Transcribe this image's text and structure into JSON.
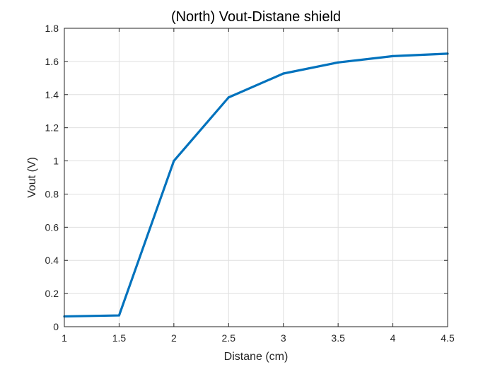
{
  "chart_data": {
    "type": "line",
    "title": "(North) Vout-Distane shield",
    "xlabel": "Distane (cm)",
    "ylabel": "Vout (V)",
    "xlim": [
      1,
      4.5
    ],
    "ylim": [
      0,
      1.8
    ],
    "grid": true,
    "xticks": [
      "1",
      "1.5",
      "2",
      "2.5",
      "3",
      "3.5",
      "4",
      "4.5"
    ],
    "yticks": [
      "0",
      "0.2",
      "0.4",
      "0.6",
      "0.8",
      "1",
      "1.2",
      "1.4",
      "1.6",
      "1.8"
    ],
    "series": [
      {
        "x": [
          1,
          1.5,
          2,
          2.5,
          3,
          3.5,
          4,
          4.5
        ],
        "y": [
          0.062,
          0.068,
          1.0,
          1.383,
          1.527,
          1.594,
          1.632,
          1.647
        ],
        "color": "#0072BD"
      }
    ]
  }
}
